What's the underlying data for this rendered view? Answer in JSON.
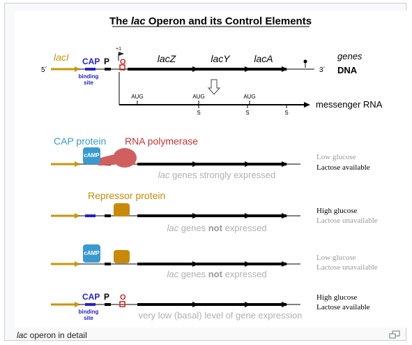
{
  "title": {
    "prefix": "The ",
    "gene": "lac",
    "suffix": " Operon and its Control Elements"
  },
  "top": {
    "lacI": "lacI",
    "cap": "CAP",
    "cap_binding_line1": "binding",
    "cap_binding_line2": "site",
    "promoter": "P",
    "operator": "O",
    "plus_one": "+1",
    "genes": [
      "lacZ",
      "lacY",
      "lacA"
    ],
    "five_prime": "5´",
    "three_prime": "3´",
    "legend_genes": "genes",
    "legend_dna": "DNA",
    "aug": [
      "AUG",
      "AUG",
      "AUG"
    ],
    "stop": [
      "S",
      "S",
      "S"
    ],
    "mrna": "messenger RNA"
  },
  "rows": [
    {
      "cap_protein": "CAP protein",
      "rnap": "RNA polymerase",
      "camp": "cAMP",
      "status_gene": "lac",
      "status_text": " genes strongly expressed",
      "cond1": "Low glucose",
      "cond2": "Lactose available"
    },
    {
      "repressor": "Repressor protein",
      "status_gene": "lac",
      "status_mid": " genes ",
      "status_bold": "not",
      "status_end": " expressed",
      "cond1": "High glucose",
      "cond2": "Lactose unavailable"
    },
    {
      "camp": "cAMP",
      "status_gene": "lac",
      "status_mid": " genes ",
      "status_bold": "not",
      "status_end": " expressed",
      "cond1": "Low glucose",
      "cond2": "Lactose unavailable"
    },
    {
      "cap": "CAP",
      "promoter": "P",
      "operator": "O",
      "cap_binding_line1": "binding",
      "cap_binding_line2": "site",
      "status_text": "very low (basal) level of gene expression",
      "cond1": "High glucose",
      "cond2": "Lactose available"
    }
  ],
  "caption": {
    "gene": "lac",
    "text": " operon in detail"
  },
  "colors": {
    "arrow_gold": "#c9960c",
    "cap_blue": "#2222cc",
    "cap_protein": "#3a9ad0",
    "rnap_red": "#d06060",
    "repressor": "#c88a0a",
    "operator_red": "#cc2222",
    "muted": "#b0b0b0",
    "serif_gray": "#999999"
  },
  "icons": {
    "enlarge": "enlarge-icon"
  }
}
